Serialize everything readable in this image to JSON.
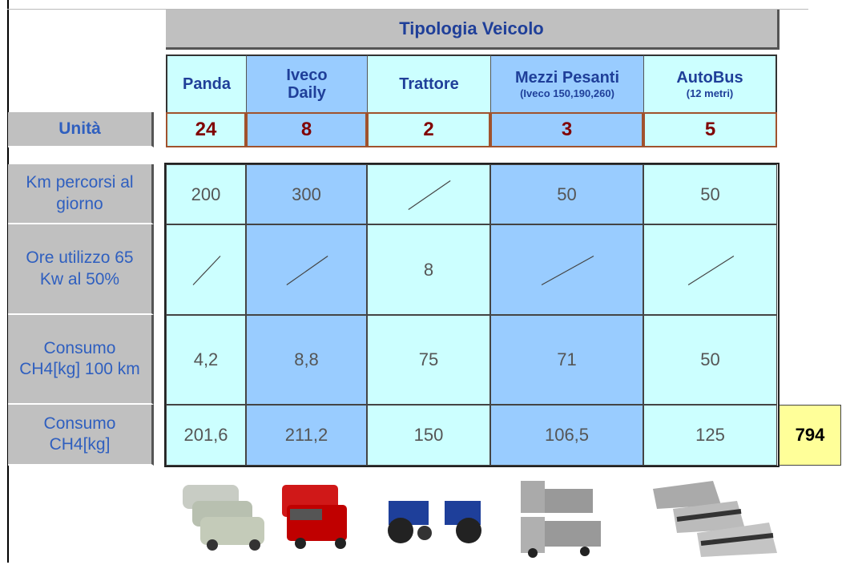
{
  "header": {
    "title": "Tipologia Veicolo"
  },
  "columns": [
    {
      "name": "Panda"
    },
    {
      "name": "Iveco Daily"
    },
    {
      "name": "Trattore"
    },
    {
      "name": "Mezzi Pesanti",
      "note": "(Iveco 150,190,260)"
    },
    {
      "name": "AutoBus",
      "note": "(12 metri)"
    }
  ],
  "units": {
    "label": "Unità",
    "values": [
      "24",
      "8",
      "2",
      "3",
      "5"
    ]
  },
  "rows": [
    {
      "label": "Km percorsi al giorno",
      "values": [
        "200",
        "300",
        null,
        "50",
        "50"
      ]
    },
    {
      "label": "Ore utilizzo 65 Kw al 50%",
      "values": [
        null,
        null,
        "8",
        null,
        null
      ]
    },
    {
      "label": "Consumo CH4[kg] 100 km",
      "values": [
        "4,2",
        "8,8",
        "75",
        "71",
        "50"
      ]
    },
    {
      "label": "Consumo CH4[kg]",
      "values": [
        "201,6",
        "211,2",
        "150",
        "106,5",
        "125"
      ]
    }
  ],
  "total": "794"
}
